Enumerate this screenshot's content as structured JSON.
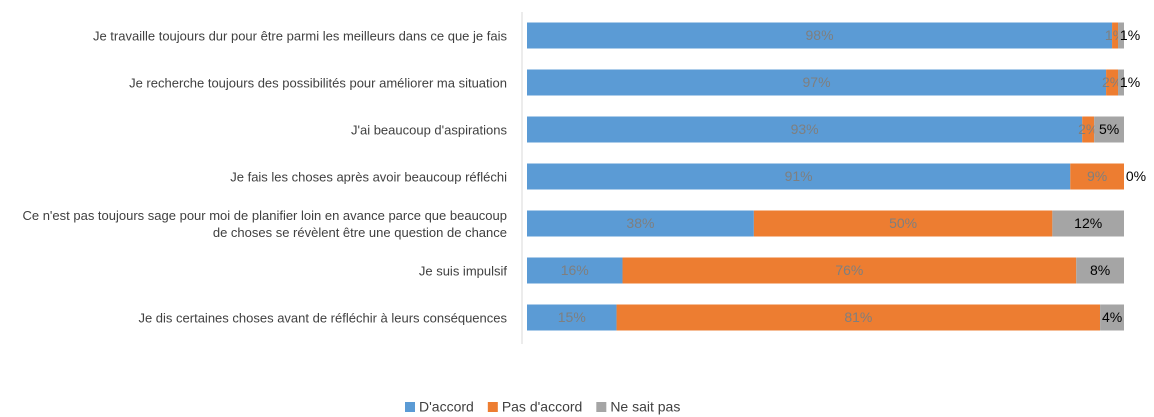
{
  "chart_data": {
    "type": "stacked-bar-horizontal",
    "categories": [
      "Je travaille toujours dur pour être parmi les meilleurs dans ce que je fais",
      "Je recherche toujours des possibilités pour améliorer ma situation",
      "J'ai beaucoup d'aspirations",
      "Je fais les choses après avoir beaucoup réfléchi",
      "Ce n'est pas toujours sage pour moi de planifier loin en avance parce que beaucoup de choses se révèlent être une question de chance",
      "Je suis impulsif",
      "Je dis certaines choses avant de réfléchir à leurs conséquences"
    ],
    "series": [
      {
        "name": "D'accord",
        "color": "#5b9bd5",
        "values": [
          98,
          97,
          93,
          91,
          38,
          16,
          15
        ],
        "value_labels": [
          "98%",
          "97%",
          "93%",
          "91%",
          "38%",
          "16%",
          "15%"
        ]
      },
      {
        "name": "Pas d'accord",
        "color": "#ed7d31",
        "values": [
          1,
          2,
          2,
          9,
          50,
          76,
          81
        ],
        "value_labels": [
          "1%",
          "2%",
          "2%",
          "9%",
          "50%",
          "76%",
          "81%"
        ]
      },
      {
        "name": "Ne sait pas",
        "color": "#a5a5a5",
        "values": [
          1,
          1,
          5,
          0,
          12,
          8,
          4
        ],
        "value_labels": [
          "1%",
          "1%",
          "5%",
          "0%",
          "12%",
          "8%",
          "4%"
        ]
      }
    ],
    "xlim": [
      0,
      100
    ],
    "legend": "bottom"
  }
}
